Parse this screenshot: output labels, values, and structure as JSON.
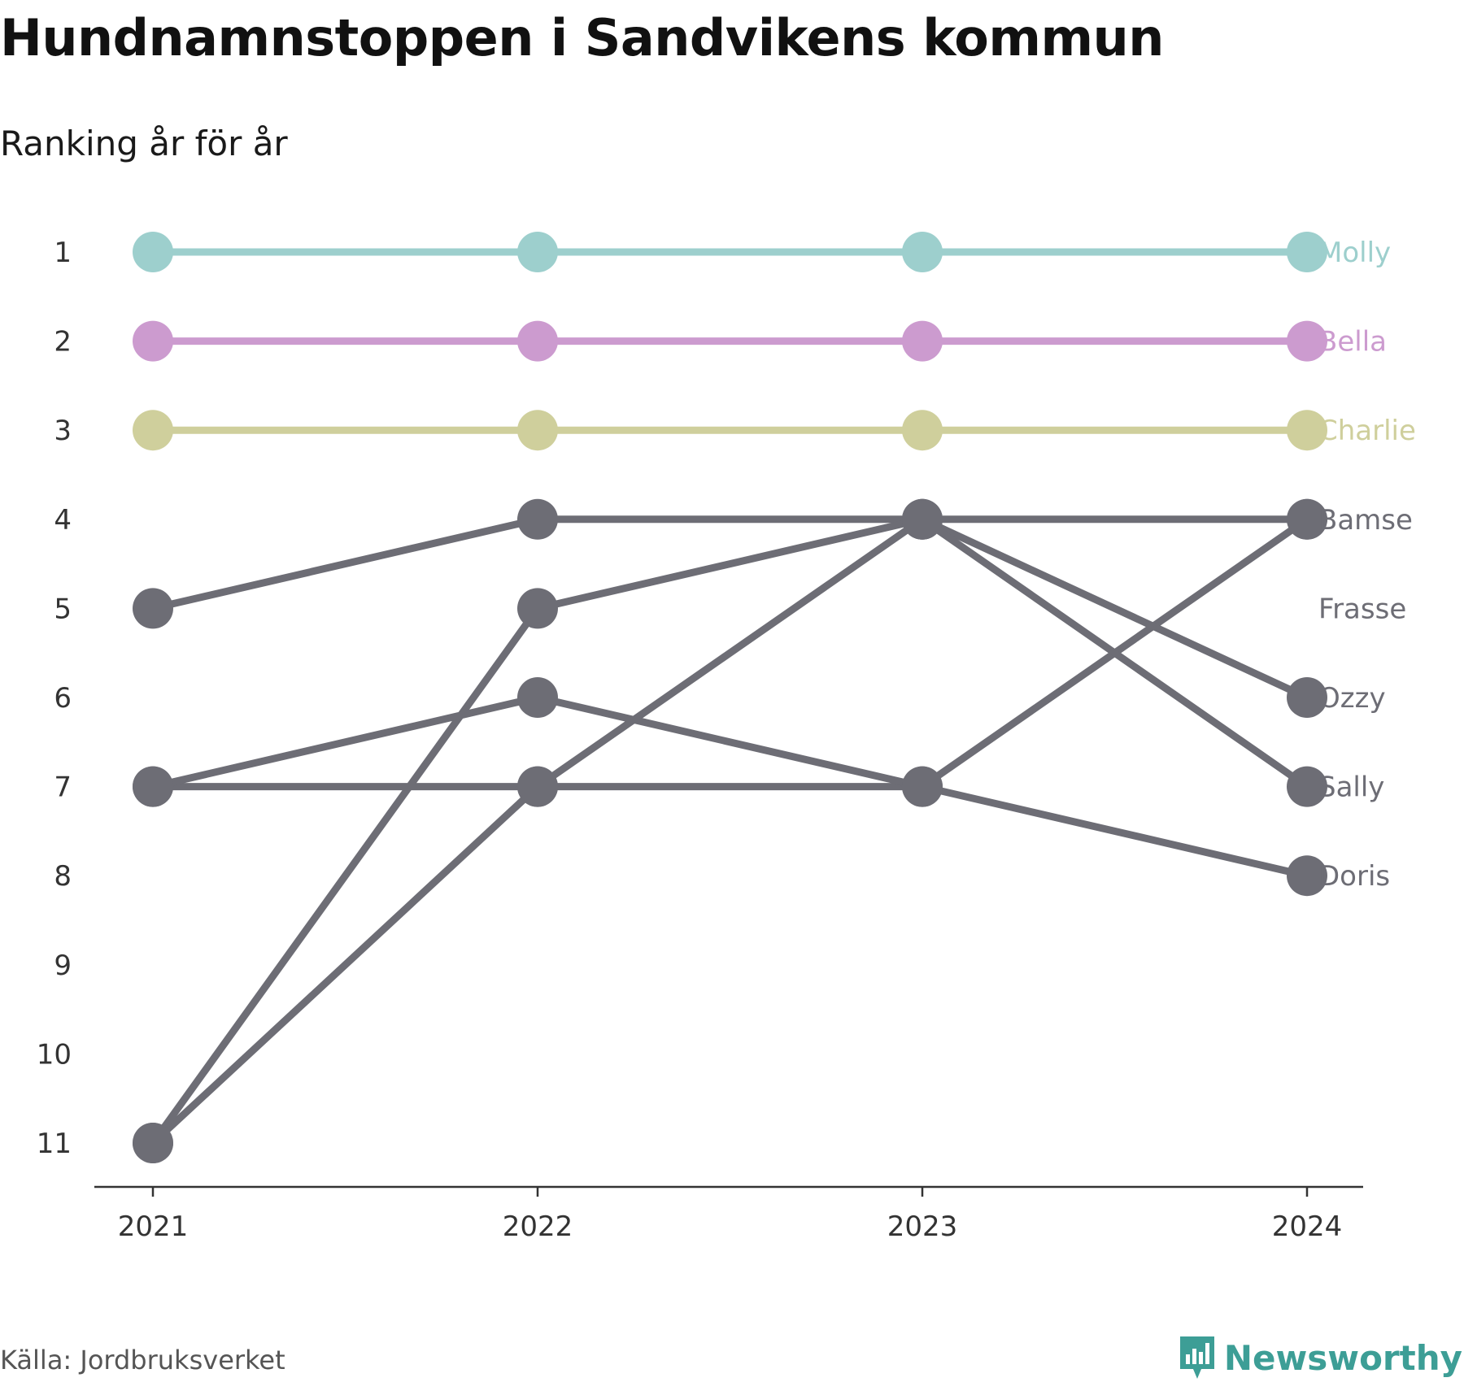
{
  "header": {
    "title": "Hundnamnstoppen i Sandvikens kommun",
    "subtitle": "Ranking år för år"
  },
  "footer": {
    "source": "Källa: Jordbruksverket",
    "brand": "Newsworthy",
    "brand_icon": "bar-chart-icon"
  },
  "colors": {
    "highlight": "#e6e6e6",
    "molly": "#9dcfcd",
    "bella": "#cc9bcf",
    "charlie": "#cfcf9c",
    "other": "#6d6d75",
    "axis": "#333333",
    "brand": "#3d9e96"
  },
  "chart_data": {
    "type": "line",
    "title": "Hundnamnstoppen i Sandvikens kommun",
    "subtitle": "Ranking år för år",
    "x": [
      "2021",
      "2022",
      "2023",
      "2024"
    ],
    "y_ticks": [
      1,
      2,
      3,
      4,
      5,
      6,
      7,
      8,
      9,
      10,
      11
    ],
    "y_inverted": true,
    "ylim": [
      1,
      11
    ],
    "grid": false,
    "legend": "direct labels at right end",
    "series": [
      {
        "name": "Molly",
        "values": [
          1,
          1,
          1,
          1
        ],
        "color": "#9dcfcd"
      },
      {
        "name": "Bella",
        "values": [
          2,
          2,
          2,
          2
        ],
        "color": "#cc9bcf"
      },
      {
        "name": "Charlie",
        "values": [
          3,
          3,
          3,
          3
        ],
        "color": "#cfcf9c"
      },
      {
        "name": "Bamse",
        "values": [
          5,
          4,
          4,
          4
        ],
        "color": "#6d6d75"
      },
      {
        "name": "Frasse",
        "values": [
          11,
          7,
          7,
          4
        ],
        "color": "#6d6d75"
      },
      {
        "name": "Ozzy",
        "values": [
          11,
          5,
          4,
          6
        ],
        "color": "#6d6d75"
      },
      {
        "name": "Sally",
        "values": [
          7,
          7,
          4,
          7
        ],
        "color": "#6d6d75"
      },
      {
        "name": "Doris",
        "values": [
          7,
          6,
          7,
          8
        ],
        "color": "#6d6d75"
      }
    ],
    "end_labels": [
      {
        "text": "Molly",
        "rank": 1,
        "color": "#9dcfcd"
      },
      {
        "text": "Bella",
        "rank": 2,
        "color": "#cc9bcf"
      },
      {
        "text": "Charlie",
        "rank": 3,
        "color": "#cfcf9c"
      },
      {
        "text": "Bamse",
        "rank": 4,
        "color": "#6d6d75"
      },
      {
        "text": "Frasse",
        "rank": 5,
        "color": "#6d6d75"
      },
      {
        "text": "Ozzy",
        "rank": 6,
        "color": "#6d6d75"
      },
      {
        "text": "Sally",
        "rank": 7,
        "color": "#6d6d75"
      },
      {
        "text": "Doris",
        "rank": 8,
        "color": "#6d6d75"
      }
    ]
  }
}
